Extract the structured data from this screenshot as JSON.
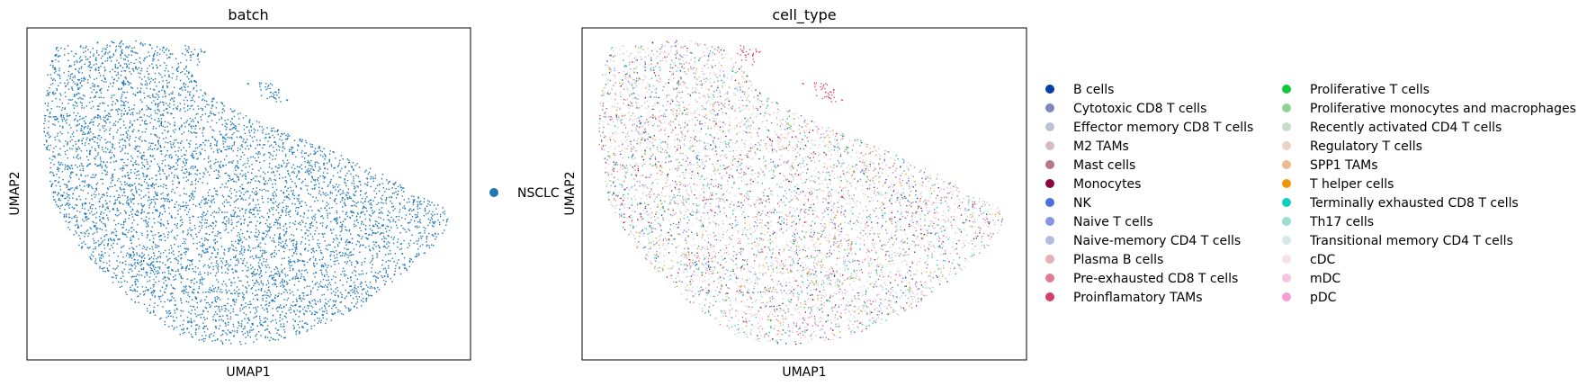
{
  "chart_data": [
    {
      "type": "scatter",
      "title": "batch",
      "xlabel": "UMAP1",
      "ylabel": "UMAP2",
      "grid": false,
      "legend_placement": "right",
      "legend": [
        {
          "label": "NSCLC",
          "color": "#1f77b4"
        }
      ]
    },
    {
      "type": "scatter",
      "title": "cell_type",
      "xlabel": "UMAP1",
      "ylabel": "UMAP2",
      "grid": false,
      "legend_placement": "right",
      "legend": [
        {
          "label": "B cells",
          "color": "#023fa5"
        },
        {
          "label": "Cytotoxic CD8 T cells",
          "color": "#7d87b9"
        },
        {
          "label": "Effector memory CD8 T cells",
          "color": "#bec1d4"
        },
        {
          "label": "M2 TAMs",
          "color": "#d6bcc0"
        },
        {
          "label": "Mast cells",
          "color": "#bb7784"
        },
        {
          "label": "Monocytes",
          "color": "#8e063b"
        },
        {
          "label": "NK",
          "color": "#4a6fe3"
        },
        {
          "label": "Naive T cells",
          "color": "#8595e1"
        },
        {
          "label": "Naive-memory CD4 T cells",
          "color": "#b5bbe3"
        },
        {
          "label": "Plasma B cells",
          "color": "#e6afb9"
        },
        {
          "label": "Pre-exhausted CD8 T cells",
          "color": "#e07b91"
        },
        {
          "label": "Proinflamatory TAMs",
          "color": "#d33f6a"
        },
        {
          "label": "Proliferative T cells",
          "color": "#11c638"
        },
        {
          "label": "Proliferative monocytes and macrophages",
          "color": "#8dd593"
        },
        {
          "label": "Recently activated CD4 T cells",
          "color": "#c6dec7"
        },
        {
          "label": "Regulatory T cells",
          "color": "#ead3c6"
        },
        {
          "label": "SPP1 TAMs",
          "color": "#f0b98d"
        },
        {
          "label": "T helper cells",
          "color": "#ef9708"
        },
        {
          "label": "Terminally exhausted CD8 T cells",
          "color": "#0fcfc0"
        },
        {
          "label": "Th17 cells",
          "color": "#9cded6"
        },
        {
          "label": "Transitional memory CD4 T cells",
          "color": "#d5eae7"
        },
        {
          "label": "cDC",
          "color": "#f3e1eb"
        },
        {
          "label": "mDC",
          "color": "#f6c4e1"
        },
        {
          "label": "pDC",
          "color": "#f79cd4"
        }
      ]
    }
  ]
}
